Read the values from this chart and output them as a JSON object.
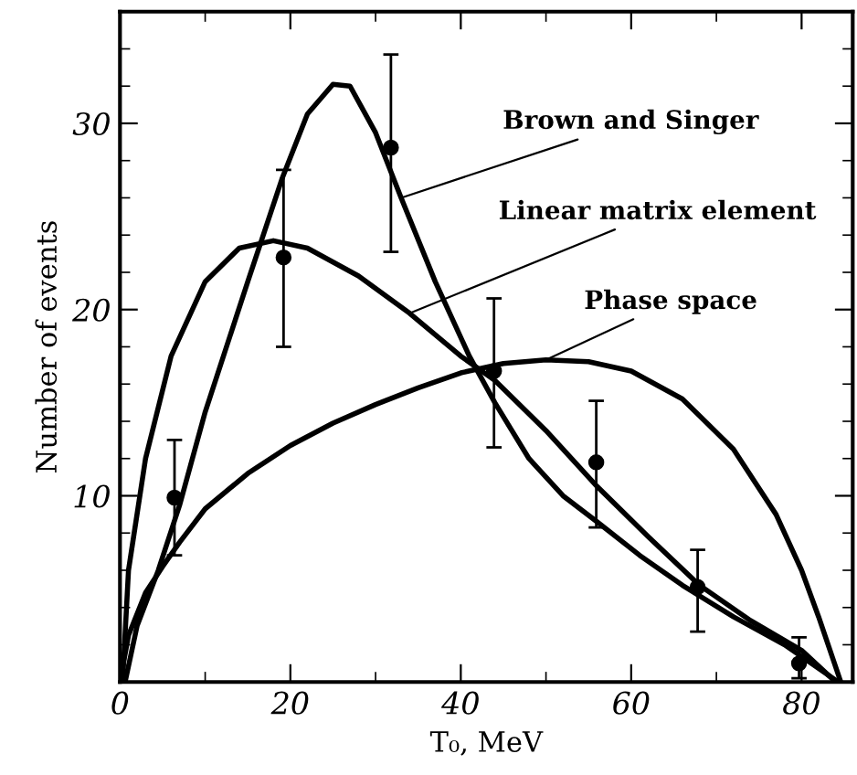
{
  "chart_data": {
    "type": "line",
    "xlabel": "T₀, MeV",
    "ylabel": "Number of events",
    "xlim": [
      0,
      86
    ],
    "ylim": [
      0,
      36
    ],
    "xticks": [
      0,
      20,
      40,
      60,
      80
    ],
    "yticks": [
      10,
      20,
      30
    ],
    "grid": false,
    "series": [
      {
        "type": "scatter",
        "color": "#000000",
        "marker": "circle",
        "x": [
          6.4,
          19.2,
          31.8,
          43.9,
          55.9,
          67.8,
          79.7
        ],
        "values": [
          9.9,
          22.8,
          28.7,
          16.7,
          11.8,
          5.1,
          1.0
        ],
        "errors": [
          [
            6.8,
            13.0
          ],
          [
            18.0,
            27.5
          ],
          [
            23.1,
            33.7
          ],
          [
            12.6,
            20.6
          ],
          [
            8.3,
            15.1
          ],
          [
            2.7,
            7.1
          ],
          [
            0.2,
            2.4
          ]
        ]
      },
      {
        "color": "#000000",
        "x": [
          0.6,
          2,
          4.5,
          7,
          10,
          15,
          19,
          22,
          25,
          27,
          30,
          33,
          37,
          41,
          44,
          48,
          52,
          56,
          61,
          66,
          72,
          78,
          84.3
        ],
        "values": [
          0,
          3,
          6,
          9.5,
          14.5,
          21.5,
          27,
          30.5,
          32.1,
          32,
          29.5,
          26,
          21.5,
          17.5,
          15,
          12,
          10,
          8.6,
          6.8,
          5.2,
          3.5,
          2,
          0
        ]
      },
      {
        "color": "#000000",
        "x": [
          0.3,
          1,
          3,
          6,
          10,
          14,
          18,
          22,
          28,
          34,
          40,
          44,
          50,
          56,
          62,
          68,
          74,
          80,
          84
        ],
        "values": [
          0,
          6,
          12,
          17.5,
          21.5,
          23.3,
          23.7,
          23.3,
          21.8,
          19.8,
          17.5,
          16.2,
          13.5,
          10.5,
          7.8,
          5.2,
          3.3,
          1.7,
          0
        ]
      },
      {
        "color": "#000000",
        "x": [
          0,
          1,
          3,
          5,
          7,
          10,
          15,
          20,
          25,
          30,
          35,
          40,
          45,
          50,
          55,
          60,
          66,
          72,
          77,
          80,
          82,
          84.6
        ],
        "values": [
          0,
          2.5,
          4.8,
          6.2,
          7.5,
          9.3,
          11.2,
          12.7,
          13.9,
          14.9,
          15.8,
          16.6,
          17.1,
          17.3,
          17.2,
          16.7,
          15.2,
          12.5,
          9,
          6,
          3.5,
          0
        ]
      }
    ],
    "annotations": [
      {
        "text": "Brown and Singer",
        "x": 33,
        "y": 26
      },
      {
        "text": "Linear matrix element",
        "x": 34,
        "y": 19.8
      },
      {
        "text": "Phase space",
        "x": 50,
        "y": 17.3
      }
    ]
  }
}
